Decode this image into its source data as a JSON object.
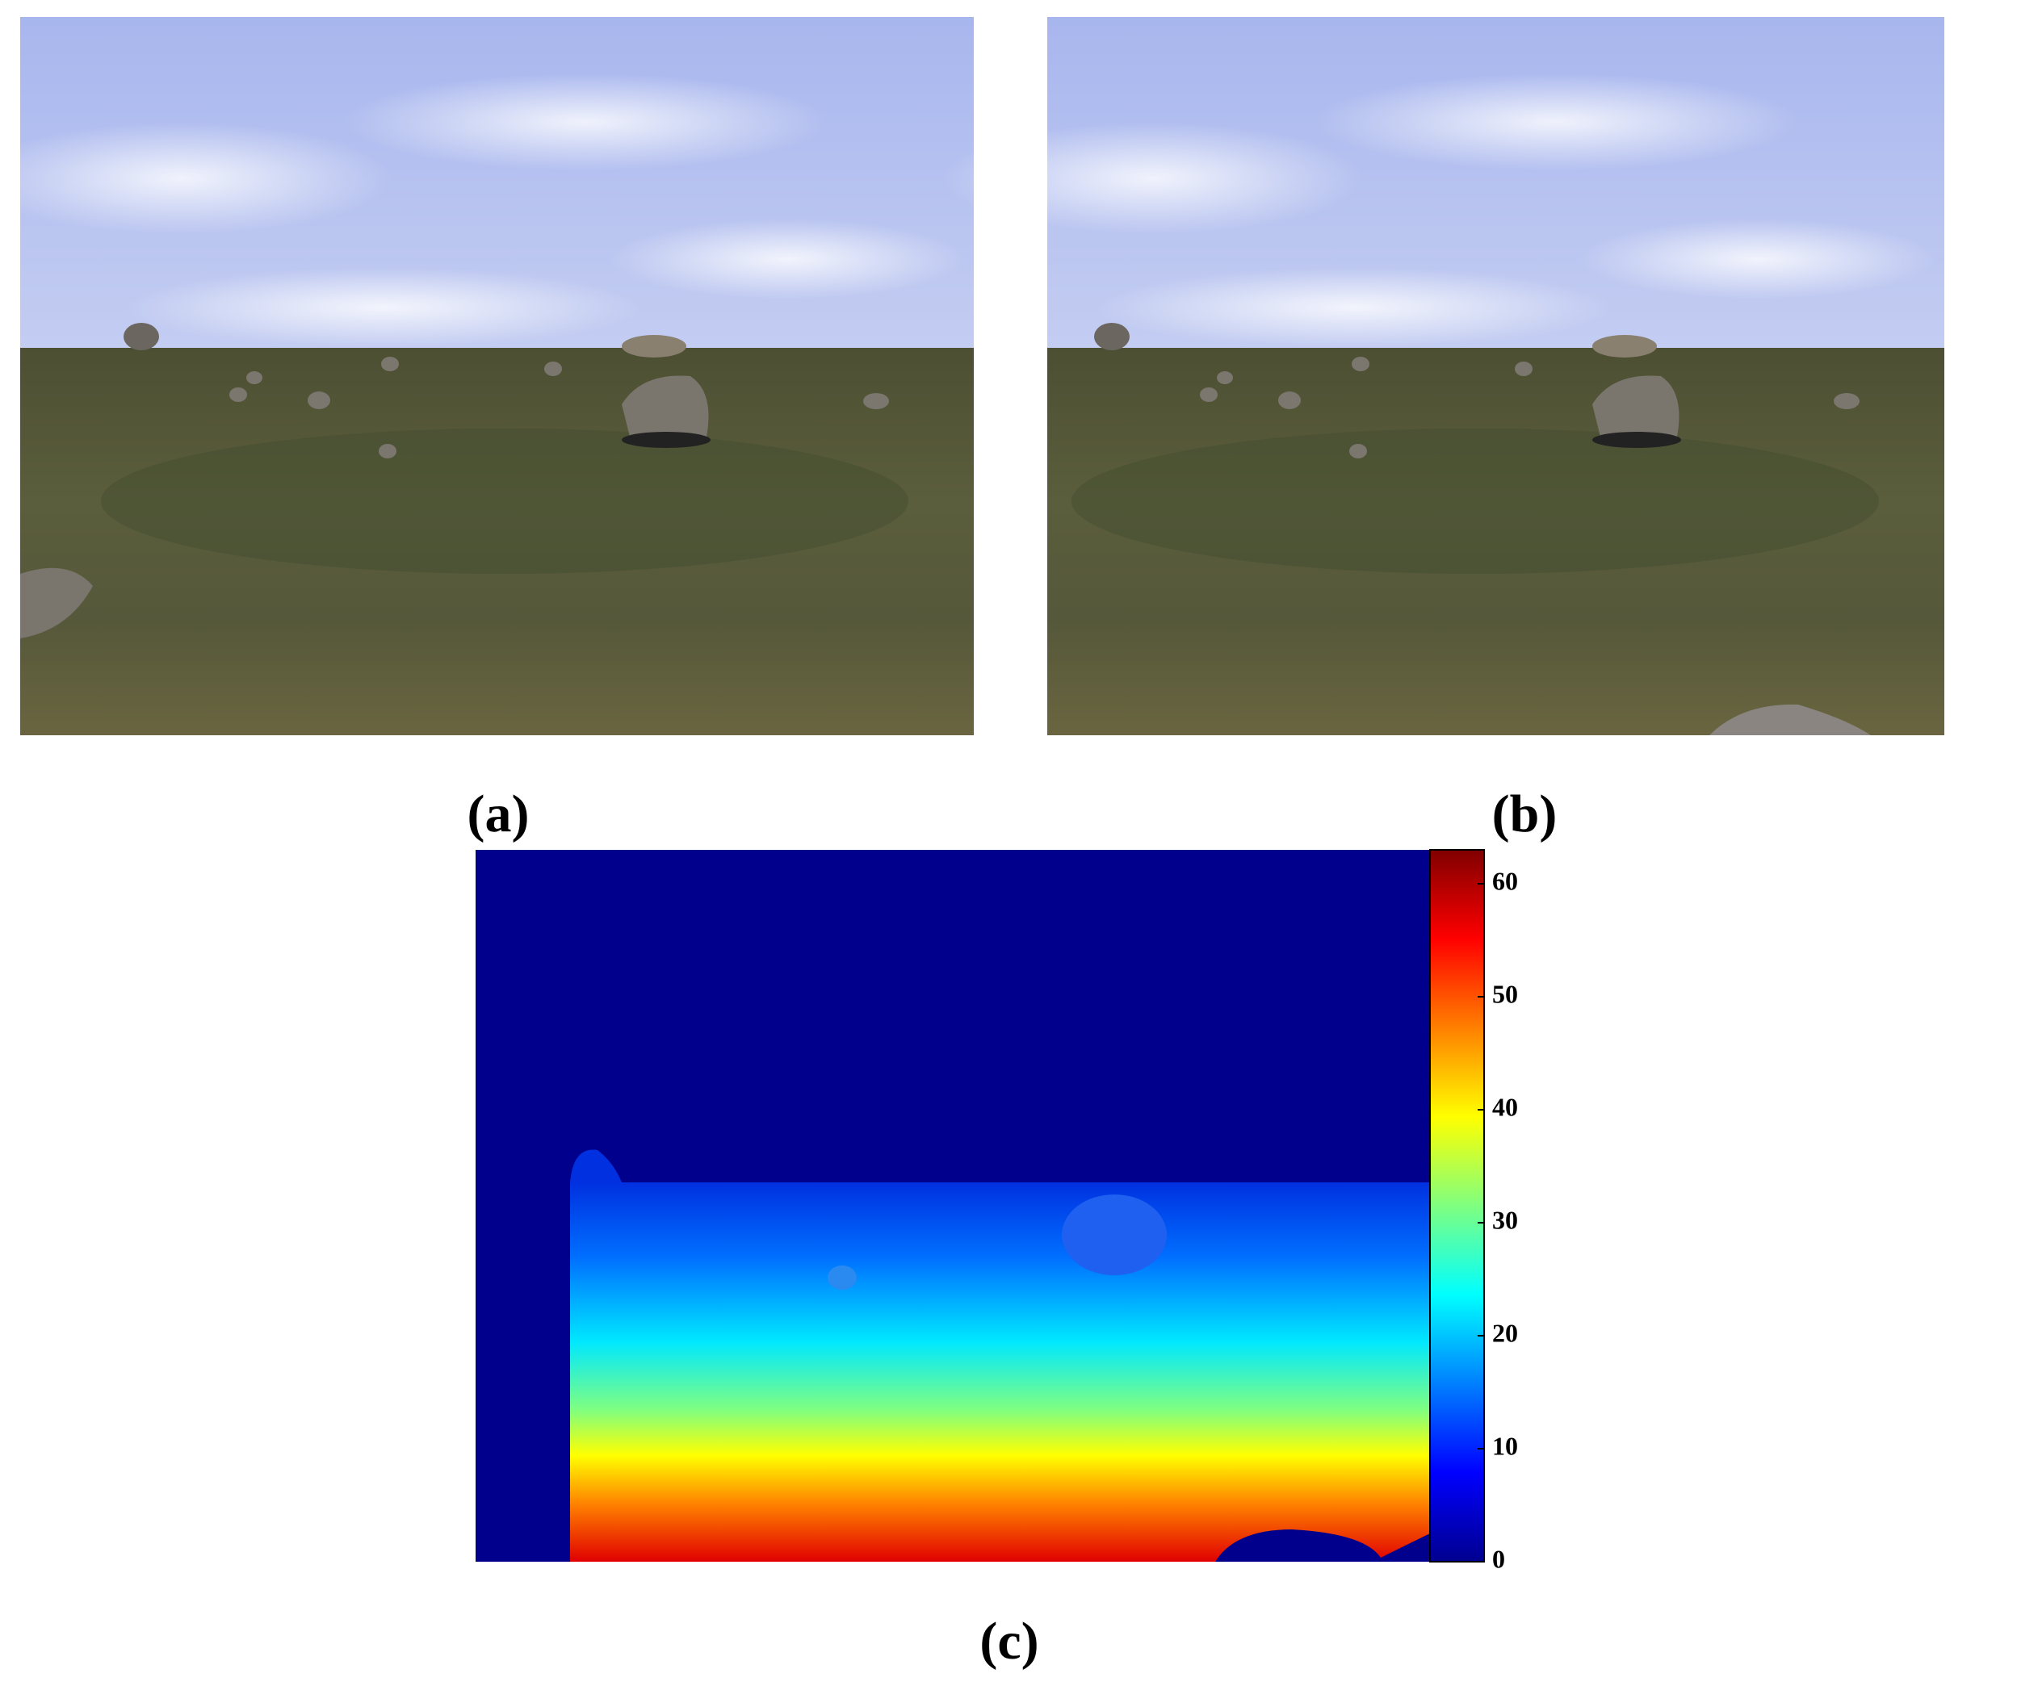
{
  "panels": [
    {
      "label": "(a)"
    },
    {
      "label": "(b)"
    },
    {
      "label": "(c)"
    }
  ],
  "colorbar": {
    "lim": [
      0,
      63
    ],
    "ticks": [
      0,
      10,
      20,
      30,
      40,
      50,
      60
    ]
  }
}
